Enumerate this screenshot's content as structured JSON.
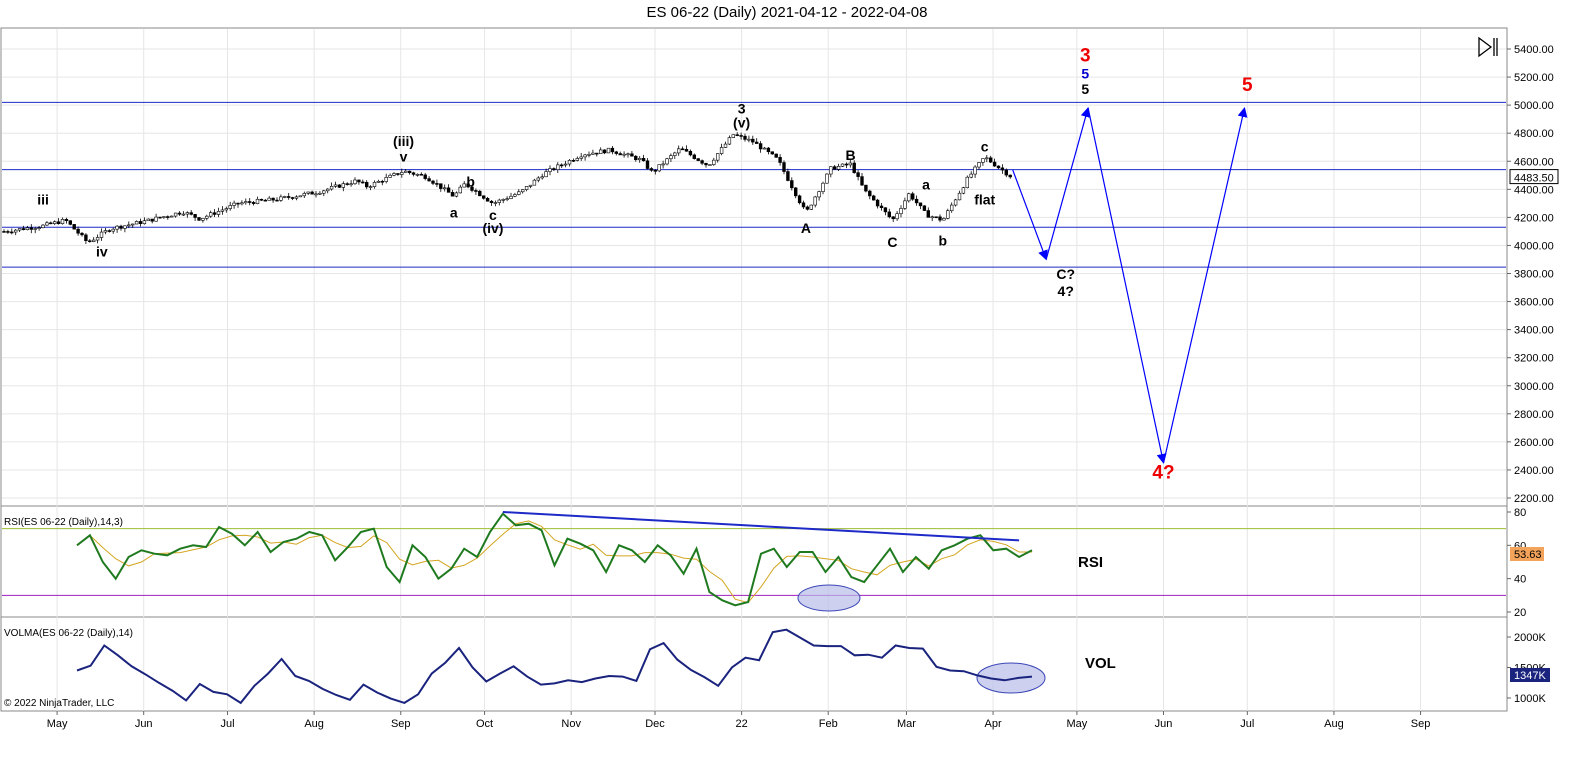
{
  "chart_data": {
    "type": "line",
    "title": "ES 06-22 (Daily)  2021-04-12 - 2022-04-08",
    "instrument": "ES 06-22",
    "current_price": "4483.50",
    "x_months": [
      "May",
      "Jun",
      "Jul",
      "Aug",
      "Sep",
      "Oct",
      "Nov",
      "Dec",
      "22",
      "Feb",
      "Mar",
      "Apr",
      "May",
      "Jun",
      "Jul",
      "Aug",
      "Sep"
    ],
    "price_axis": {
      "ticks": [
        "5400.00",
        "5200.00",
        "5000.00",
        "4800.00",
        "4600.00",
        "4400.00",
        "4200.00",
        "4000.00",
        "3800.00",
        "3600.00",
        "3400.00",
        "3200.00",
        "3000.00",
        "2800.00",
        "2600.00",
        "2400.00",
        "2200.00"
      ],
      "ylim": [
        2150,
        5480
      ]
    },
    "horizontal_levels": [
      5020,
      4540,
      4130,
      3845
    ],
    "price_series": {
      "name": "ES 06-22",
      "x": [
        "2021-04-12",
        "2021-04-26",
        "2021-05-04",
        "2021-05-12",
        "2021-05-20",
        "2021-06-01",
        "2021-06-15",
        "2021-06-21",
        "2021-07-05",
        "2021-07-19",
        "2021-08-02",
        "2021-08-16",
        "2021-08-20",
        "2021-09-02",
        "2021-09-10",
        "2021-09-20",
        "2021-09-24",
        "2021-10-04",
        "2021-10-14",
        "2021-10-22",
        "2021-11-05",
        "2021-11-15",
        "2021-11-26",
        "2021-11-30",
        "2021-12-10",
        "2021-12-20",
        "2021-12-29",
        "2022-01-05",
        "2022-01-14",
        "2022-01-24",
        "2022-02-02",
        "2022-02-09",
        "2022-02-14",
        "2022-02-24",
        "2022-03-02",
        "2022-03-08",
        "2022-03-14",
        "2022-03-23",
        "2022-03-29",
        "2022-04-08"
      ],
      "values": [
        4100,
        4140,
        4180,
        4020,
        4120,
        4170,
        4240,
        4190,
        4300,
        4330,
        4380,
        4460,
        4420,
        4530,
        4490,
        4350,
        4440,
        4300,
        4380,
        4510,
        4650,
        4680,
        4610,
        4520,
        4690,
        4570,
        4790,
        4740,
        4610,
        4230,
        4550,
        4580,
        4390,
        4180,
        4370,
        4220,
        4180,
        4480,
        4630,
        4483
      ]
    },
    "projection_path": {
      "x": [
        "2022-04-08",
        "2022-04-20",
        "2022-05-05",
        "2022-06-01",
        "2022-06-30"
      ],
      "values": [
        "4540",
        "3900",
        "4980",
        "2450",
        "4980"
      ]
    },
    "wave_labels": [
      {
        "text": "iii",
        "date": "2021-04-26",
        "price": 4290,
        "color": "#000000"
      },
      {
        "text": "iv",
        "date": "2021-05-17",
        "price": 3920,
        "color": "#000000"
      },
      {
        "text": "(iii)",
        "date": "2021-09-02",
        "price": 4710,
        "color": "#000000"
      },
      {
        "text": "v",
        "date": "2021-09-02",
        "price": 4600,
        "color": "#000000"
      },
      {
        "text": "a",
        "date": "2021-09-20",
        "price": 4200,
        "color": "#000000"
      },
      {
        "text": "b",
        "date": "2021-09-26",
        "price": 4420,
        "color": "#000000"
      },
      {
        "text": "c",
        "date": "2021-10-04",
        "price": 4180,
        "color": "#000000"
      },
      {
        "text": "(iv)",
        "date": "2021-10-04",
        "price": 4090,
        "color": "#000000"
      },
      {
        "text": "3",
        "date": "2022-01-01",
        "price": 4940,
        "color": "#000000"
      },
      {
        "text": "(v)",
        "date": "2022-01-01",
        "price": 4840,
        "color": "#000000"
      },
      {
        "text": "B",
        "date": "2022-02-09",
        "price": 4610,
        "color": "#000000"
      },
      {
        "text": "A",
        "date": "2022-01-24",
        "price": 4090,
        "color": "#000000"
      },
      {
        "text": "C",
        "date": "2022-02-24",
        "price": 3990,
        "color": "#000000"
      },
      {
        "text": "a",
        "date": "2022-03-08",
        "price": 4400,
        "color": "#000000"
      },
      {
        "text": "b",
        "date": "2022-03-14",
        "price": 4000,
        "color": "#000000"
      },
      {
        "text": "flat",
        "date": "2022-03-29",
        "price": 4290,
        "color": "#000000"
      },
      {
        "text": "c",
        "date": "2022-03-29",
        "price": 4670,
        "color": "#000000"
      },
      {
        "text": "C?",
        "date": "2022-04-27",
        "price": 3760,
        "color": "#000000"
      },
      {
        "text": "4?",
        "date": "2022-04-27",
        "price": 3640,
        "color": "#000000"
      },
      {
        "text": "5",
        "date": "2022-05-04",
        "price": 5080,
        "color": "#000000"
      },
      {
        "text": "5",
        "date": "2022-05-04",
        "price": 5190,
        "color": "#0000cc"
      },
      {
        "text": "3",
        "date": "2022-05-04",
        "price": 5310,
        "color": "#ee0000"
      },
      {
        "text": "4?",
        "date": "2022-06-01",
        "price": 2340,
        "color": "#ee0000"
      },
      {
        "text": "5",
        "date": "2022-07-01",
        "price": 5100,
        "color": "#ee0000"
      }
    ],
    "rsi": {
      "title": "RSI(ES 06-22 (Daily),14,3)",
      "label": "RSI",
      "current": "53.63",
      "ticks": [
        "80",
        "60",
        "40",
        "20"
      ],
      "levels": [
        70,
        30
      ],
      "values": [
        60,
        66,
        50,
        40,
        53,
        57,
        55,
        54,
        58,
        60,
        59,
        71,
        67,
        60,
        68,
        56,
        62,
        64,
        68,
        66,
        51,
        59,
        68,
        70,
        47,
        38,
        60,
        53,
        40,
        46,
        58,
        53,
        68,
        79,
        72,
        73,
        69,
        48,
        64,
        61,
        57,
        44,
        60,
        57,
        50,
        60,
        54,
        43,
        58,
        32,
        27,
        24,
        26,
        55,
        58,
        47,
        56,
        56,
        44,
        53,
        41,
        38,
        48,
        58,
        44,
        53,
        46,
        57,
        60,
        64,
        66,
        57,
        58,
        53,
        57
      ],
      "divergence_line": {
        "from": {
          "index": 33,
          "value": 80
        },
        "to": {
          "index": 73,
          "value": 63
        }
      }
    },
    "volma": {
      "title": "VOLMA(ES 06-22 (Daily),14)",
      "label": "VOL",
      "current": "1347K",
      "ticks": [
        "2000K",
        "1500K",
        "1000K"
      ],
      "values": [
        1450,
        1530,
        1860,
        1700,
        1520,
        1390,
        1250,
        1120,
        960,
        1230,
        1100,
        1060,
        920,
        1200,
        1400,
        1640,
        1360,
        1280,
        1150,
        1050,
        970,
        1220,
        1090,
        990,
        920,
        1060,
        1400,
        1580,
        1820,
        1500,
        1270,
        1400,
        1520,
        1350,
        1220,
        1240,
        1290,
        1260,
        1320,
        1360,
        1350,
        1280,
        1800,
        1900,
        1630,
        1460,
        1340,
        1200,
        1500,
        1660,
        1620,
        2080,
        2120,
        1990,
        1860,
        1850,
        1850,
        1700,
        1710,
        1660,
        1860,
        1820,
        1810,
        1510,
        1450,
        1440,
        1370,
        1320,
        1290,
        1330,
        1350
      ]
    },
    "legend": "none"
  },
  "copyright": "© 2022 NinjaTrader, LLC",
  "icons": {
    "toolbar": "skip-to-end-icon"
  }
}
